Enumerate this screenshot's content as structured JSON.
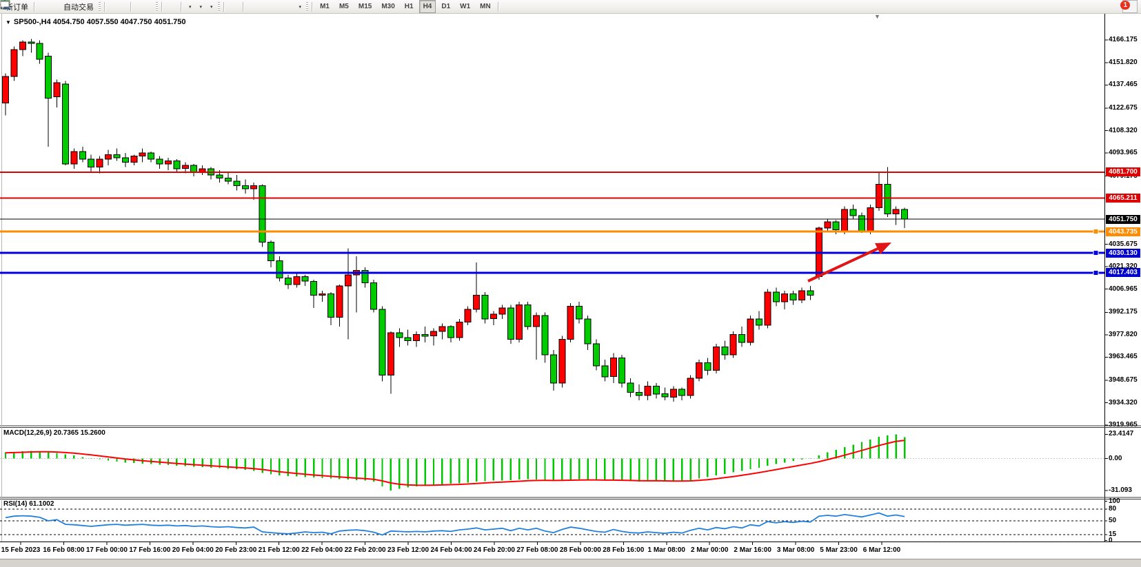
{
  "toolbar": {
    "new_order_label": "新订单",
    "autotrading_label": "自动交易",
    "timeframes": [
      "M1",
      "M5",
      "M15",
      "M30",
      "H1",
      "H4",
      "D1",
      "W1",
      "MN"
    ],
    "active_timeframe": "H4",
    "notification_count": "1"
  },
  "chart": {
    "title_line": "SP500-,H4  4054.750 4057.550 4047.750 4051.750",
    "symbol": "SP500-",
    "timeframe": "H4",
    "open": "4054.750",
    "high": "4057.550",
    "low": "4047.750",
    "close": "4051.750"
  },
  "indicators": {
    "macd_label": "MACD(12,26,9) 20.7365 15.2600",
    "rsi_label": "RSI(14) 61.1002"
  },
  "chart_data": {
    "type": "candlestick",
    "symbol": "SP500-",
    "timeframe": "H4",
    "colors": {
      "up": "#ff0000",
      "down": "#00cc00",
      "wick": "#000000",
      "macd_hist": "#00c800",
      "macd_signal": "#ff0000",
      "rsi_line": "#2080dd",
      "arrow": "#e01616"
    },
    "price_axis": {
      "ticks": [
        4166.175,
        4151.82,
        4137.465,
        4122.675,
        4108.32,
        4093.965,
        4079.175,
        4035.675,
        4021.32,
        4006.965,
        3992.175,
        3977.82,
        3963.465,
        3948.675,
        3934.32,
        3919.965
      ]
    },
    "hlines": [
      {
        "price": 4081.7,
        "label": "4081.700",
        "color": "#dd0000",
        "width": 2,
        "badge": "#dd0000",
        "handle": false
      },
      {
        "price": 4065.211,
        "label": "4065.211",
        "color": "#dd0000",
        "width": 2,
        "badge": "#dd0000",
        "handle": false
      },
      {
        "price": 4051.75,
        "label": "4051.750",
        "color": "#000000",
        "width": 1,
        "badge": "#000000",
        "handle": false
      },
      {
        "price": 4043.735,
        "label": "4043.735",
        "color": "#ff8c00",
        "width": 3,
        "badge": "#ff8c00",
        "handle": true
      },
      {
        "price": 4030.13,
        "label": "4030.130",
        "color": "#0000dd",
        "width": 3,
        "badge": "#0000cc",
        "handle": true
      },
      {
        "price": 4017.403,
        "label": "4017.403",
        "color": "#0000dd",
        "width": 3,
        "badge": "#0000cc",
        "handle": true
      }
    ],
    "candles": [
      [
        4126,
        4145,
        4118,
        4143
      ],
      [
        4143,
        4162,
        4140,
        4160
      ],
      [
        4160,
        4166,
        4156,
        4165
      ],
      [
        4165,
        4167,
        4158,
        4164
      ],
      [
        4164,
        4166,
        4151,
        4154
      ],
      [
        4156,
        4158,
        4098,
        4129
      ],
      [
        4130,
        4141,
        4123,
        4139
      ],
      [
        4138,
        4140,
        4086,
        4087
      ],
      [
        4087,
        4097,
        4084,
        4095
      ],
      [
        4095,
        4098,
        4088,
        4090
      ],
      [
        4090,
        4093,
        4082,
        4085
      ],
      [
        4085,
        4092,
        4081,
        4090
      ],
      [
        4090,
        4096,
        4086,
        4093
      ],
      [
        4093,
        4097,
        4089,
        4091
      ],
      [
        4091,
        4094,
        4085,
        4088
      ],
      [
        4088,
        4093,
        4086,
        4092
      ],
      [
        4092,
        4097,
        4088,
        4094
      ],
      [
        4094,
        4095,
        4088,
        4090
      ],
      [
        4090,
        4092,
        4084,
        4087
      ],
      [
        4087,
        4091,
        4083,
        4089
      ],
      [
        4089,
        4090,
        4082,
        4084
      ],
      [
        4084,
        4088,
        4081,
        4086
      ],
      [
        4086,
        4087,
        4079,
        4082
      ],
      [
        4082,
        4086,
        4080,
        4084
      ],
      [
        4084,
        4085,
        4077,
        4080
      ],
      [
        4080,
        4083,
        4075,
        4078
      ],
      [
        4078,
        4082,
        4074,
        4076
      ],
      [
        4076,
        4080,
        4070,
        4073
      ],
      [
        4073,
        4077,
        4068,
        4071
      ],
      [
        4071,
        4075,
        4064,
        4073
      ],
      [
        4073,
        4074,
        4034,
        4037
      ],
      [
        4037,
        4038,
        4021,
        4025
      ],
      [
        4025,
        4028,
        4012,
        4014
      ],
      [
        4014,
        4016,
        4007,
        4010
      ],
      [
        4010,
        4017,
        4008,
        4015
      ],
      [
        4015,
        4016,
        4009,
        4012
      ],
      [
        4012,
        4013,
        3995,
        4003
      ],
      [
        4003,
        4006,
        3999,
        4004
      ],
      [
        4004,
        4005,
        3984,
        3989
      ],
      [
        3989,
        4010,
        3983,
        4009
      ],
      [
        4009,
        4033,
        3975,
        4016
      ],
      [
        4016,
        4028,
        3992,
        4019
      ],
      [
        4019,
        4021,
        4008,
        4011
      ],
      [
        4011,
        4013,
        3992,
        3994
      ],
      [
        3994,
        3996,
        3948,
        3952
      ],
      [
        3952,
        3980,
        3940,
        3979
      ],
      [
        3979,
        3982,
        3970,
        3976
      ],
      [
        3976,
        3981,
        3971,
        3974
      ],
      [
        3974,
        3980,
        3970,
        3978
      ],
      [
        3978,
        3983,
        3973,
        3977
      ],
      [
        3977,
        3982,
        3971,
        3980
      ],
      [
        3980,
        3985,
        3975,
        3983
      ],
      [
        3983,
        3984,
        3973,
        3976
      ],
      [
        3976,
        3988,
        3974,
        3986
      ],
      [
        3986,
        3996,
        3984,
        3994
      ],
      [
        3994,
        4024,
        3992,
        4003
      ],
      [
        4003,
        4005,
        3985,
        3988
      ],
      [
        3988,
        3993,
        3984,
        3991
      ],
      [
        3991,
        3997,
        3988,
        3995
      ],
      [
        3995,
        3997,
        3972,
        3975
      ],
      [
        3975,
        3999,
        3973,
        3997
      ],
      [
        3997,
        3999,
        3981,
        3983
      ],
      [
        3983,
        3992,
        3962,
        3990
      ],
      [
        3990,
        3992,
        3960,
        3965
      ],
      [
        3965,
        3968,
        3942,
        3947
      ],
      [
        3947,
        3977,
        3944,
        3975
      ],
      [
        3975,
        3998,
        3973,
        3996
      ],
      [
        3996,
        3999,
        3985,
        3988
      ],
      [
        3988,
        3990,
        3968,
        3972
      ],
      [
        3972,
        3975,
        3955,
        3958
      ],
      [
        3958,
        3962,
        3948,
        3951
      ],
      [
        3951,
        3966,
        3947,
        3963
      ],
      [
        3963,
        3965,
        3944,
        3947
      ],
      [
        3947,
        3950,
        3938,
        3941
      ],
      [
        3941,
        3946,
        3936,
        3939
      ],
      [
        3939,
        3948,
        3936,
        3945
      ],
      [
        3945,
        3947,
        3937,
        3940
      ],
      [
        3940,
        3944,
        3936,
        3938
      ],
      [
        3938,
        3945,
        3935,
        3943
      ],
      [
        3943,
        3944,
        3936,
        3939
      ],
      [
        3939,
        3952,
        3937,
        3950
      ],
      [
        3950,
        3962,
        3948,
        3960
      ],
      [
        3960,
        3963,
        3952,
        3955
      ],
      [
        3955,
        3972,
        3953,
        3970
      ],
      [
        3970,
        3974,
        3962,
        3965
      ],
      [
        3965,
        3980,
        3963,
        3978
      ],
      [
        3978,
        3983,
        3970,
        3973
      ],
      [
        3973,
        3990,
        3971,
        3988
      ],
      [
        3988,
        3993,
        3981,
        3984
      ],
      [
        3984,
        4007,
        3982,
        4005
      ],
      [
        4005,
        4008,
        3996,
        3999
      ],
      [
        3999,
        4006,
        3994,
        4004
      ],
      [
        4004,
        4006,
        3997,
        4000
      ],
      [
        4000,
        4008,
        3998,
        4006
      ],
      [
        4006,
        4009,
        4000,
        4003
      ],
      [
        4015,
        4047,
        4013,
        4046
      ],
      [
        4046,
        4052,
        4044,
        4050
      ],
      [
        4050,
        4051,
        4042,
        4045
      ],
      [
        4044,
        4060,
        4042,
        4058
      ],
      [
        4058,
        4061,
        4052,
        4054
      ],
      [
        4054,
        4056,
        4043,
        4044
      ],
      [
        4044,
        4061,
        4042,
        4059
      ],
      [
        4059,
        4082,
        4057,
        4074
      ],
      [
        4074,
        4085,
        4053,
        4055
      ],
      [
        4055,
        4060,
        4048,
        4058
      ],
      [
        4058,
        4059,
        4046,
        4051.75
      ]
    ],
    "macd": {
      "label": "MACD(12,26,9) 20.7365 15.2600",
      "main_value": 20.7365,
      "signal_value": 15.26,
      "axis_ticks": [
        23.4147,
        0.0,
        -31.093
      ],
      "axis_tick_labels": [
        "23.4147",
        "0.00",
        "-31.093"
      ],
      "histogram": [
        6,
        6.5,
        7,
        7.5,
        7,
        6.5,
        5.5,
        4,
        3,
        1.5,
        0.3,
        -0.8,
        -2,
        -3,
        -4,
        -4.5,
        -5,
        -5.5,
        -6,
        -6.5,
        -7,
        -7.5,
        -8,
        -8.5,
        -9,
        -9.5,
        -10,
        -10.5,
        -11,
        -12,
        -14,
        -15.5,
        -16.5,
        -17,
        -17.5,
        -18,
        -18.5,
        -19,
        -19.5,
        -20,
        -20.5,
        -21,
        -21.5,
        -22.5,
        -27,
        -31,
        -29.5,
        -28,
        -27,
        -26,
        -25.5,
        -25,
        -24.5,
        -24,
        -23.5,
        -22.5,
        -22,
        -21.5,
        -21.5,
        -21,
        -20.5,
        -20,
        -20.5,
        -21,
        -21.5,
        -21,
        -20.5,
        -20,
        -20.5,
        -21,
        -21.5,
        -21,
        -21.5,
        -22,
        -22.5,
        -22,
        -21.5,
        -22,
        -22.5,
        -22,
        -21,
        -19.5,
        -18,
        -16.5,
        -15,
        -13.5,
        -12,
        -10.5,
        -9,
        -7,
        -5.5,
        -4,
        -2.5,
        -1,
        0.5,
        3,
        6,
        8.5,
        11,
        13.5,
        16,
        18.5,
        21,
        22.5,
        23.4147,
        20.7365
      ]
    },
    "rsi": {
      "label": "RSI(14) 61.1002",
      "value": 61.1002,
      "levels": [
        80,
        50,
        15
      ],
      "axis_tick_labels": [
        "100",
        "80",
        "50",
        "15",
        "0"
      ],
      "axis_tick_values": [
        100,
        80,
        50,
        15,
        0
      ],
      "values": [
        58,
        62,
        63,
        62,
        59,
        50,
        53,
        41,
        40,
        38,
        36,
        38,
        40,
        41,
        39,
        40,
        41,
        39,
        38,
        39,
        37,
        38,
        36,
        37,
        35,
        34,
        35,
        33,
        32,
        34,
        22,
        20,
        18,
        17,
        19,
        22,
        20,
        21,
        17,
        24,
        26,
        27,
        25,
        21,
        14,
        24,
        23,
        22,
        23,
        22,
        24,
        25,
        23,
        27,
        29,
        32,
        27,
        29,
        31,
        25,
        31,
        27,
        31,
        24,
        20,
        28,
        34,
        31,
        27,
        23,
        21,
        28,
        23,
        20,
        19,
        22,
        20,
        18,
        21,
        19,
        26,
        31,
        27,
        33,
        30,
        35,
        32,
        40,
        37,
        48,
        45,
        48,
        46,
        49,
        47,
        62,
        64,
        62,
        66,
        63,
        60,
        65,
        70,
        62,
        65,
        61.1
      ]
    },
    "time_axis": {
      "labels": [
        "15 Feb 2023",
        "16 Feb 08:00",
        "17 Feb 00:00",
        "17 Feb 16:00",
        "20 Feb 04:00",
        "20 Feb 23:00",
        "21 Feb 12:00",
        "22 Feb 04:00",
        "22 Feb 20:00",
        "23 Feb 12:00",
        "24 Feb 04:00",
        "24 Feb 20:00",
        "27 Feb 08:00",
        "28 Feb 00:00",
        "28 Feb 16:00",
        "1 Mar 08:00",
        "2 Mar 00:00",
        "2 Mar 16:00",
        "3 Mar 08:00",
        "5 Mar 23:00",
        "6 Mar 12:00"
      ]
    },
    "annotations": [
      {
        "type": "arrow",
        "color": "#e01616",
        "from_price": 4012.0,
        "to_price": 4036.5,
        "note": "red up-right arrow pointing toward blue line zone"
      }
    ]
  }
}
